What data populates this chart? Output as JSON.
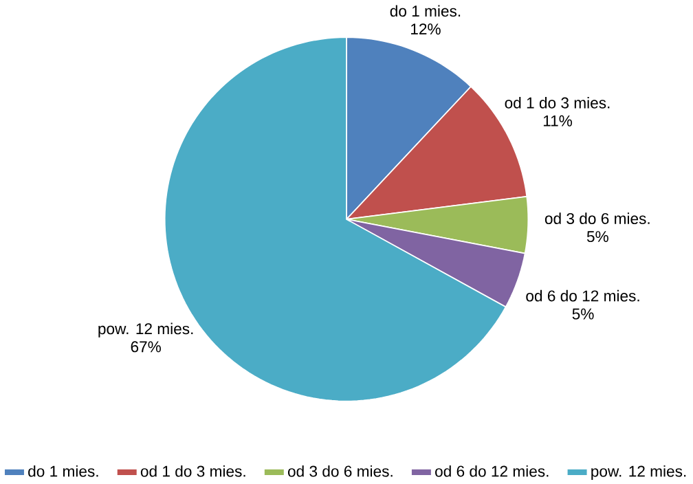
{
  "chart_data": {
    "type": "pie",
    "categories": [
      "do 1 mies.",
      "od 1 do 3 mies.",
      "od 3 do 6 mies.",
      "od 6 do 12 mies.",
      "pow. 12 mies."
    ],
    "values": [
      12,
      11,
      5,
      5,
      67
    ],
    "colors": [
      "#4f81bd",
      "#c0504d",
      "#9bbb59",
      "#8064a2",
      "#4bacc6"
    ],
    "value_labels": [
      "12%",
      "11%",
      "5%",
      "5%",
      "67%"
    ],
    "legend": "bottom"
  }
}
